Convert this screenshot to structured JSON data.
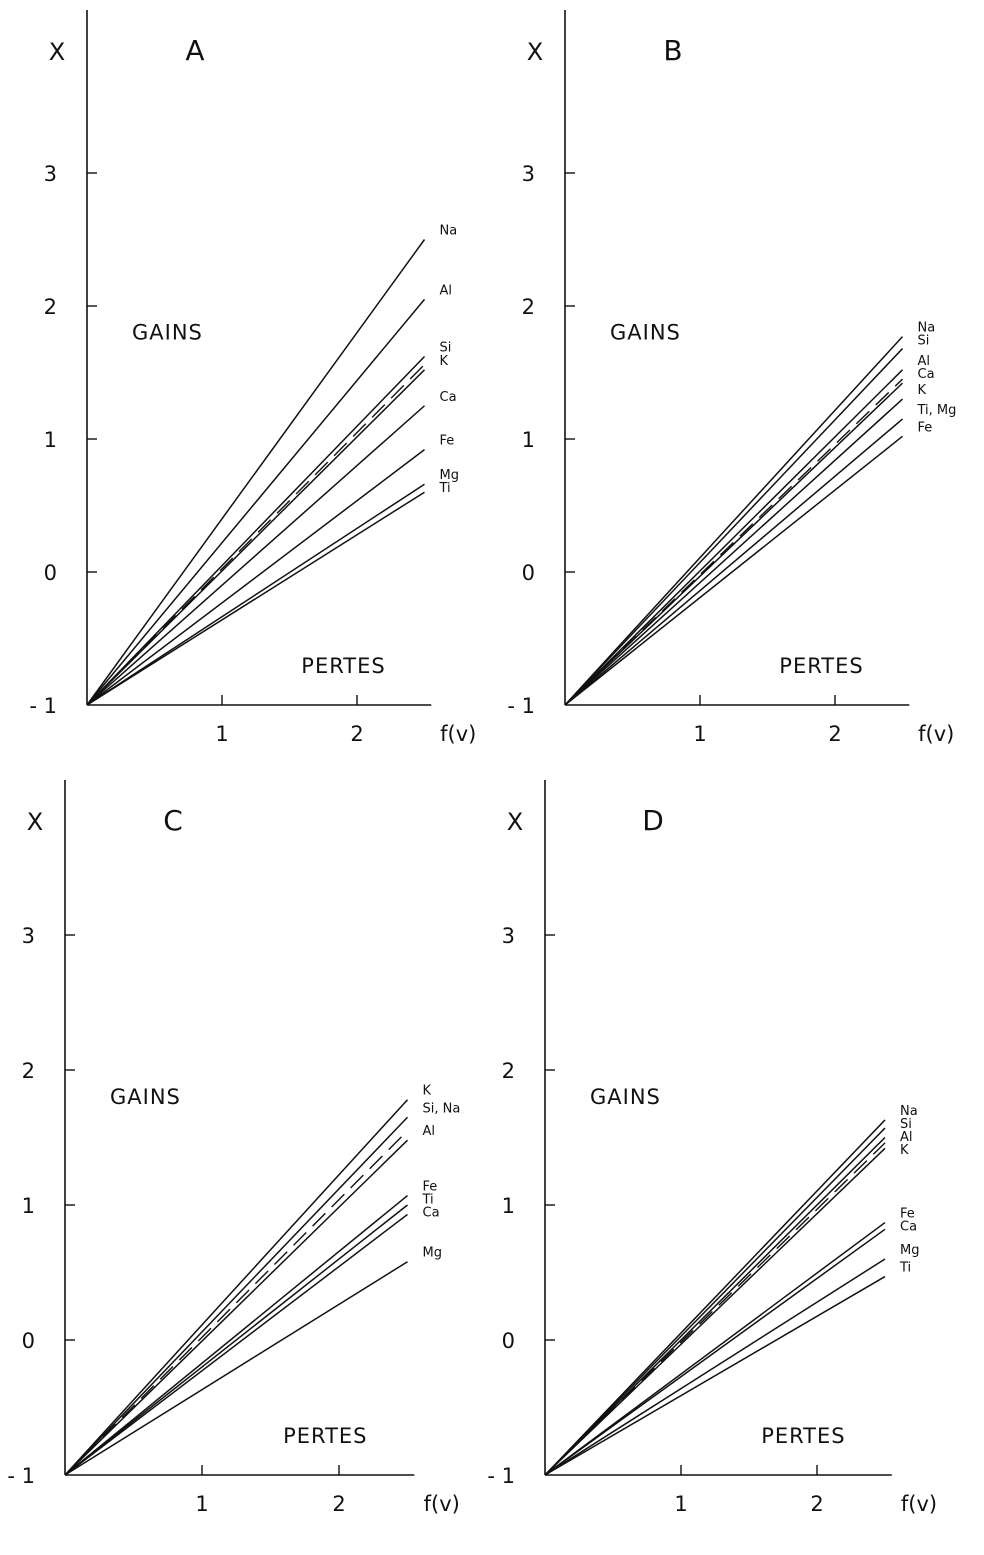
{
  "chart_data": [
    {
      "type": "line",
      "title": "A",
      "xlabel": "f(v)",
      "ylabel": "X",
      "xlim": [
        0,
        2.6
      ],
      "ylim": [
        -1,
        4
      ],
      "xticks": [
        1,
        2
      ],
      "yticks": [
        -1,
        0,
        1,
        2,
        3
      ],
      "ytick_labels": [
        "- 1",
        "0",
        "1",
        "2",
        "3"
      ],
      "region_labels": {
        "upper": "GAINS",
        "lower": "PERTES"
      },
      "series": [
        {
          "name": "Na",
          "x": [
            0,
            2.5
          ],
          "y": [
            -1,
            2.5
          ],
          "style": "solid"
        },
        {
          "name": "Al",
          "x": [
            0,
            2.5
          ],
          "y": [
            -1,
            2.05
          ],
          "style": "solid"
        },
        {
          "name": "Si",
          "x": [
            0,
            2.5
          ],
          "y": [
            -1,
            1.62
          ],
          "style": "solid"
        },
        {
          "name": "K",
          "x": [
            0,
            2.5
          ],
          "y": [
            -1,
            1.52
          ],
          "style": "solid"
        },
        {
          "name": "Ca",
          "x": [
            0,
            2.5
          ],
          "y": [
            -1,
            1.25
          ],
          "style": "solid"
        },
        {
          "name": "Fe",
          "x": [
            0,
            2.5
          ],
          "y": [
            -1,
            0.92
          ],
          "style": "solid"
        },
        {
          "name": "Mg",
          "x": [
            0,
            2.5
          ],
          "y": [
            -1,
            0.66
          ],
          "style": "solid"
        },
        {
          "name": "Ti",
          "x": [
            0,
            2.5
          ],
          "y": [
            -1,
            0.6
          ],
          "style": "solid"
        },
        {
          "name": "",
          "x": [
            0,
            2.5
          ],
          "y": [
            -1,
            1.56
          ],
          "style": "dashed"
        }
      ]
    },
    {
      "type": "line",
      "title": "B",
      "xlabel": "f(v)",
      "ylabel": "X",
      "xlim": [
        0,
        2.6
      ],
      "ylim": [
        -1,
        4
      ],
      "xticks": [
        1,
        2
      ],
      "yticks": [
        -1,
        0,
        1,
        2,
        3
      ],
      "ytick_labels": [
        "- 1",
        "0",
        "1",
        "2",
        "3"
      ],
      "region_labels": {
        "upper": "GAINS",
        "lower": "PERTES"
      },
      "series": [
        {
          "name": "Na",
          "x": [
            0,
            2.5
          ],
          "y": [
            -1,
            1.77
          ],
          "style": "solid"
        },
        {
          "name": "Si",
          "x": [
            0,
            2.5
          ],
          "y": [
            -1,
            1.68
          ],
          "style": "solid"
        },
        {
          "name": "Al",
          "x": [
            0,
            2.5
          ],
          "y": [
            -1,
            1.52
          ],
          "style": "solid"
        },
        {
          "name": "Ca",
          "x": [
            0,
            2.5
          ],
          "y": [
            -1,
            1.42
          ],
          "style": "solid"
        },
        {
          "name": "K",
          "x": [
            0,
            2.5
          ],
          "y": [
            -1,
            1.3
          ],
          "style": "solid"
        },
        {
          "name": "Ti, Mg",
          "x": [
            0,
            2.5
          ],
          "y": [
            -1,
            1.15
          ],
          "style": "solid"
        },
        {
          "name": "Fe",
          "x": [
            0,
            2.5
          ],
          "y": [
            -1,
            1.02
          ],
          "style": "solid"
        },
        {
          "name": "",
          "x": [
            0,
            2.5
          ],
          "y": [
            -1,
            1.45
          ],
          "style": "dashed"
        }
      ]
    },
    {
      "type": "line",
      "title": "C",
      "xlabel": "f(v)",
      "ylabel": "X",
      "xlim": [
        0,
        2.6
      ],
      "ylim": [
        -1,
        4
      ],
      "xticks": [
        1,
        2
      ],
      "yticks": [
        -1,
        0,
        1,
        2,
        3
      ],
      "ytick_labels": [
        "- 1",
        "0",
        "1",
        "2",
        "3"
      ],
      "region_labels": {
        "upper": "GAINS",
        "lower": "PERTES"
      },
      "series": [
        {
          "name": "K",
          "x": [
            0,
            2.5
          ],
          "y": [
            -1,
            1.78
          ],
          "style": "solid"
        },
        {
          "name": "Si, Na",
          "x": [
            0,
            2.5
          ],
          "y": [
            -1,
            1.65
          ],
          "style": "solid"
        },
        {
          "name": "Al",
          "x": [
            0,
            2.5
          ],
          "y": [
            -1,
            1.48
          ],
          "style": "solid"
        },
        {
          "name": "Fe",
          "x": [
            0,
            2.5
          ],
          "y": [
            -1,
            1.07
          ],
          "style": "solid"
        },
        {
          "name": "Ti",
          "x": [
            0,
            2.5
          ],
          "y": [
            -1,
            1.0
          ],
          "style": "solid"
        },
        {
          "name": "Ca",
          "x": [
            0,
            2.5
          ],
          "y": [
            -1,
            0.93
          ],
          "style": "solid"
        },
        {
          "name": "Mg",
          "x": [
            0,
            2.5
          ],
          "y": [
            -1,
            0.58
          ],
          "style": "solid"
        },
        {
          "name": "",
          "x": [
            0,
            2.5
          ],
          "y": [
            -1,
            1.55
          ],
          "style": "dashed"
        }
      ]
    },
    {
      "type": "line",
      "title": "D",
      "xlabel": "f(v)",
      "ylabel": "X",
      "xlim": [
        0,
        2.6
      ],
      "ylim": [
        -1,
        4
      ],
      "xticks": [
        1,
        2
      ],
      "yticks": [
        -1,
        0,
        1,
        2,
        3
      ],
      "ytick_labels": [
        "- 1",
        "0",
        "1",
        "2",
        "3"
      ],
      "region_labels": {
        "upper": "GAINS",
        "lower": "PERTES"
      },
      "series": [
        {
          "name": "Na",
          "x": [
            0,
            2.5
          ],
          "y": [
            -1,
            1.63
          ],
          "style": "solid"
        },
        {
          "name": "Si",
          "x": [
            0,
            2.5
          ],
          "y": [
            -1,
            1.57
          ],
          "style": "solid"
        },
        {
          "name": "Al",
          "x": [
            0,
            2.5
          ],
          "y": [
            -1,
            1.5
          ],
          "style": "solid"
        },
        {
          "name": "K",
          "x": [
            0,
            2.5
          ],
          "y": [
            -1,
            1.42
          ],
          "style": "solid"
        },
        {
          "name": "Fe",
          "x": [
            0,
            2.5
          ],
          "y": [
            -1,
            0.87
          ],
          "style": "solid"
        },
        {
          "name": "Ca",
          "x": [
            0,
            2.5
          ],
          "y": [
            -1,
            0.82
          ],
          "style": "solid"
        },
        {
          "name": "Mg",
          "x": [
            0,
            2.5
          ],
          "y": [
            -1,
            0.6
          ],
          "style": "solid"
        },
        {
          "name": "Ti",
          "x": [
            0,
            2.5
          ],
          "y": [
            -1,
            0.47
          ],
          "style": "solid"
        },
        {
          "name": "",
          "x": [
            0,
            2.5
          ],
          "y": [
            -1,
            1.46
          ],
          "style": "dashed"
        }
      ]
    }
  ]
}
